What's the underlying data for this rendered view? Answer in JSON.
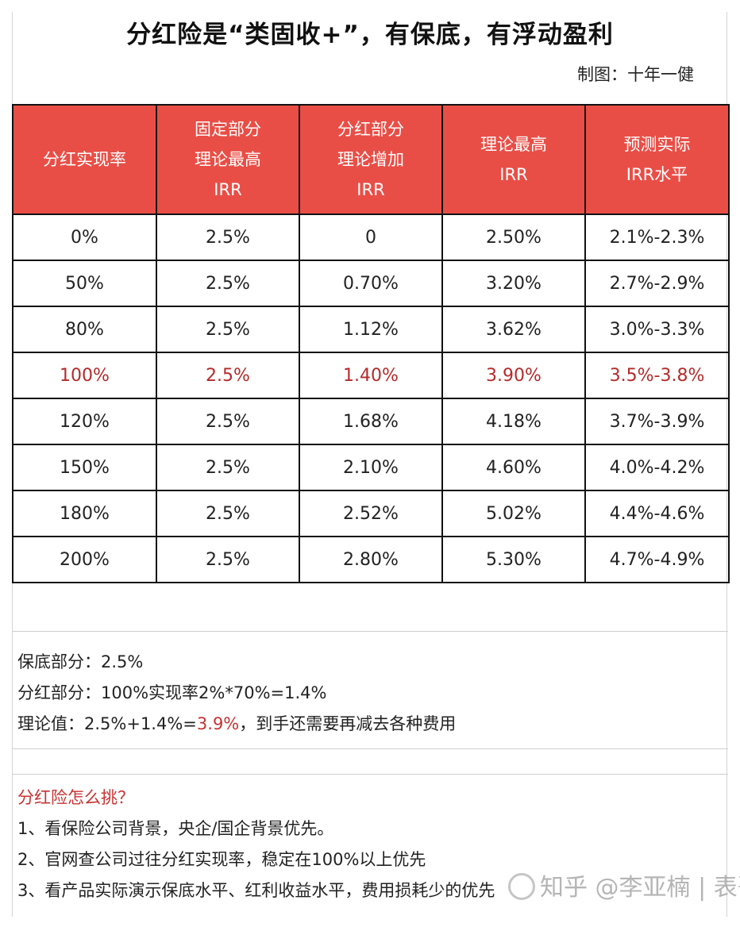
{
  "title": "分红险是“类固收+”，有保底，有浮动盈利",
  "author": "制图：十年一健",
  "table": {
    "headers": [
      [
        "分红实现率"
      ],
      [
        "固定部分",
        "理论最高",
        "IRR"
      ],
      [
        "分红部分",
        "理论增加",
        "IRR"
      ],
      [
        "理论最高",
        "IRR"
      ],
      [
        "预测实际",
        "IRR水平"
      ]
    ],
    "rows": [
      [
        "0%",
        "2.5%",
        "0",
        "2.50%",
        "2.1%-2.3%"
      ],
      [
        "50%",
        "2.5%",
        "0.70%",
        "3.20%",
        "2.7%-2.9%"
      ],
      [
        "80%",
        "2.5%",
        "1.12%",
        "3.62%",
        "3.0%-3.3%"
      ],
      [
        "100%",
        "2.5%",
        "1.40%",
        "3.90%",
        "3.5%-3.8%"
      ],
      [
        "120%",
        "2.5%",
        "1.68%",
        "4.18%",
        "3.7%-3.9%"
      ],
      [
        "150%",
        "2.5%",
        "2.10%",
        "4.60%",
        "4.0%-4.2%"
      ],
      [
        "180%",
        "2.5%",
        "2.52%",
        "5.02%",
        "4.4%-4.6%"
      ],
      [
        "200%",
        "2.5%",
        "2.80%",
        "5.30%",
        "4.7%-4.9%"
      ]
    ],
    "highlight_row_index": 3,
    "header_color": "#e94e46",
    "highlight_color": "#b52a2a"
  },
  "notes": {
    "line1": "保底部分：2.5%",
    "line2": "分红部分：100%实现率2%*70%=1.4%",
    "line3_prefix": "理论值：2.5%+1.4%=",
    "line3_highlight": "3.9%",
    "line3_suffix": "，到手还需要再减去各种费用"
  },
  "tips": {
    "heading": "分红险怎么挑？",
    "items": [
      "1、看保险公司背景，央企/国企背景优先。",
      "2、官网查公司过往分红实现率，稳定在100%以上优先",
      "3、看产品实际演示保底水平、红利收益水平，费用损耗少的优先"
    ]
  },
  "watermark": "知乎 @李亚楠 | 表哥"
}
